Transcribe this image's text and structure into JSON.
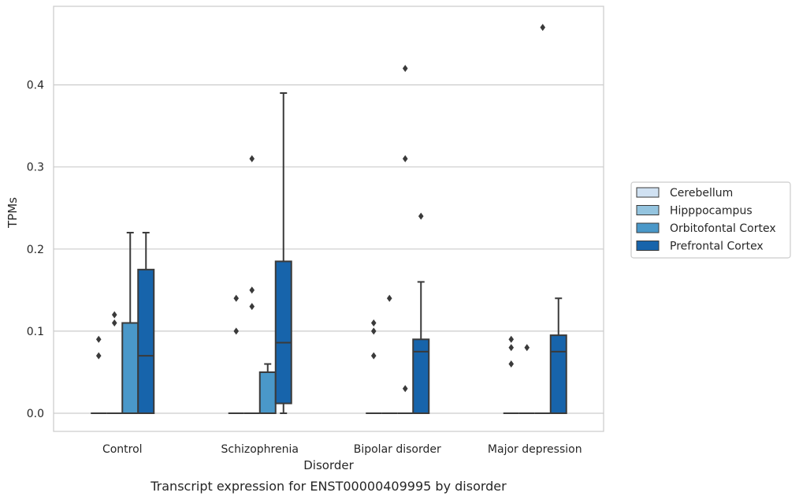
{
  "chart_data": {
    "type": "box",
    "caption": "Transcript expression for ENST00000409995 by disorder",
    "xlabel": "Disorder",
    "ylabel": "TPMs",
    "ylim": [
      -0.023,
      0.495
    ],
    "yticks": [
      0.0,
      0.1,
      0.2,
      0.3,
      0.4
    ],
    "ytick_labels": [
      "0.0",
      "0.1",
      "0.2",
      "0.3",
      "0.4"
    ],
    "grid": "horizontal",
    "legend_position": "right",
    "categories": [
      "Control",
      "Schizophrenia",
      "Bipolar disorder",
      "Major depression"
    ],
    "series": [
      {
        "name": "Cerebellum",
        "color": "#d0e1f2",
        "boxes": [
          {
            "q1": 0,
            "median": 0,
            "q3": 0,
            "whisker_low": 0,
            "whisker_high": 0,
            "outliers": [
              0.07,
              0.09
            ]
          },
          {
            "q1": 0,
            "median": 0,
            "q3": 0,
            "whisker_low": 0,
            "whisker_high": 0,
            "outliers": [
              0.1,
              0.14
            ]
          },
          {
            "q1": 0,
            "median": 0,
            "q3": 0,
            "whisker_low": 0,
            "whisker_high": 0,
            "outliers": [
              0.07,
              0.1,
              0.11
            ]
          },
          {
            "q1": 0,
            "median": 0,
            "q3": 0,
            "whisker_low": 0,
            "whisker_high": 0,
            "outliers": [
              0.06,
              0.08,
              0.09
            ]
          }
        ]
      },
      {
        "name": "Hipppocampus",
        "color": "#94c4df",
        "boxes": [
          {
            "q1": 0,
            "median": 0,
            "q3": 0,
            "whisker_low": 0,
            "whisker_high": 0,
            "outliers": [
              0.11,
              0.12
            ]
          },
          {
            "q1": 0,
            "median": 0,
            "q3": 0,
            "whisker_low": 0,
            "whisker_high": 0,
            "outliers": [
              0.13,
              0.15,
              0.31
            ]
          },
          {
            "q1": 0,
            "median": 0,
            "q3": 0,
            "whisker_low": 0,
            "whisker_high": 0,
            "outliers": [
              0.14
            ]
          },
          {
            "q1": 0,
            "median": 0,
            "q3": 0,
            "whisker_low": 0,
            "whisker_high": 0,
            "outliers": [
              0.08
            ]
          }
        ]
      },
      {
        "name": "Orbitofontal Cortex",
        "color": "#4a98c9",
        "boxes": [
          {
            "q1": 0,
            "median": 0,
            "q3": 0.11,
            "whisker_low": 0,
            "whisker_high": 0.22,
            "outliers": []
          },
          {
            "q1": 0,
            "median": 0,
            "q3": 0.05,
            "whisker_low": 0,
            "whisker_high": 0.06,
            "outliers": []
          },
          {
            "q1": 0,
            "median": 0,
            "q3": 0,
            "whisker_low": 0,
            "whisker_high": 0,
            "outliers": [
              0.03,
              0.31,
              0.42
            ]
          },
          {
            "q1": 0,
            "median": 0,
            "q3": 0,
            "whisker_low": 0,
            "whisker_high": 0,
            "outliers": [
              0.47
            ]
          }
        ]
      },
      {
        "name": "Prefrontal Cortex",
        "color": "#1764ab",
        "boxes": [
          {
            "q1": 0,
            "median": 0.07,
            "q3": 0.175,
            "whisker_low": 0,
            "whisker_high": 0.22,
            "outliers": []
          },
          {
            "q1": 0.012,
            "median": 0.086,
            "q3": 0.185,
            "whisker_low": 0,
            "whisker_high": 0.39,
            "outliers": []
          },
          {
            "q1": 0,
            "median": 0.075,
            "q3": 0.09,
            "whisker_low": 0,
            "whisker_high": 0.16,
            "outliers": [
              0.24
            ]
          },
          {
            "q1": 0,
            "median": 0.075,
            "q3": 0.095,
            "whisker_low": 0,
            "whisker_high": 0.14,
            "outliers": []
          }
        ]
      }
    ]
  }
}
